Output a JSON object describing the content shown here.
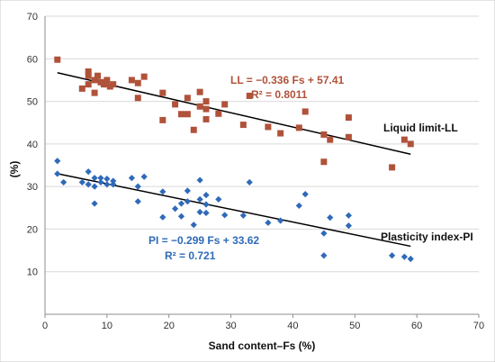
{
  "chart_data": {
    "type": "scatter",
    "xlabel": "Sand content–Fs (%)",
    "ylabel": "(%)",
    "xlim": [
      0,
      70
    ],
    "ylim": [
      0,
      70
    ],
    "x_ticks": [
      "0",
      "10",
      "20",
      "30",
      "40",
      "50",
      "60",
      "70"
    ],
    "y_ticks": [
      "10",
      "20",
      "30",
      "40",
      "50",
      "60",
      "70"
    ],
    "grid": "horizontal",
    "series": [
      {
        "name": "Liquid limit-LL",
        "color": "#b0523a",
        "marker": "square",
        "equation": "LL = −0.336 Fs + 57.41",
        "r2": "R² = 0.8011",
        "trend": {
          "slope": -0.336,
          "intercept": 57.41,
          "x_range": [
            2,
            59
          ]
        },
        "points": [
          [
            2,
            59.8
          ],
          [
            6,
            53
          ],
          [
            7,
            54
          ],
          [
            7,
            56
          ],
          [
            7,
            57
          ],
          [
            8,
            52
          ],
          [
            8,
            55
          ],
          [
            8.5,
            56
          ],
          [
            9,
            54.5
          ],
          [
            9.5,
            54
          ],
          [
            10,
            55
          ],
          [
            10.5,
            53.5
          ],
          [
            11,
            54
          ],
          [
            14,
            55
          ],
          [
            15,
            54.3
          ],
          [
            15,
            50.8
          ],
          [
            16,
            55.8
          ],
          [
            19,
            52
          ],
          [
            19,
            45.6
          ],
          [
            21,
            49.3
          ],
          [
            22,
            47
          ],
          [
            23,
            50.8
          ],
          [
            23,
            47
          ],
          [
            24,
            43.3
          ],
          [
            25,
            52.2
          ],
          [
            25,
            48.8
          ],
          [
            26,
            50
          ],
          [
            26,
            48.2
          ],
          [
            26,
            45.8
          ],
          [
            28,
            47.1
          ],
          [
            29,
            49.3
          ],
          [
            32,
            44.5
          ],
          [
            33,
            51.3
          ],
          [
            36,
            44
          ],
          [
            38,
            42.5
          ],
          [
            41,
            43.8
          ],
          [
            42,
            47.6
          ],
          [
            45,
            42.2
          ],
          [
            45,
            35.8
          ],
          [
            46,
            41
          ],
          [
            49,
            46.2
          ],
          [
            49,
            41.6
          ],
          [
            56,
            34.5
          ],
          [
            58,
            41
          ],
          [
            59,
            40
          ]
        ]
      },
      {
        "name": "Plasticity index-PI",
        "color": "#2f6ab8",
        "marker": "diamond",
        "equation": "PI = −0.299 Fs + 33.62",
        "r2": "R² = 0.721",
        "trend": {
          "slope": -0.299,
          "intercept": 33.62,
          "x_range": [
            2,
            59
          ]
        },
        "points": [
          [
            2,
            36
          ],
          [
            2,
            33
          ],
          [
            3,
            31
          ],
          [
            6,
            31
          ],
          [
            7,
            33.5
          ],
          [
            7,
            30.5
          ],
          [
            8,
            32
          ],
          [
            8,
            30
          ],
          [
            8,
            26
          ],
          [
            9,
            32
          ],
          [
            9,
            31
          ],
          [
            10,
            30.5
          ],
          [
            10,
            31.8
          ],
          [
            11,
            31.3
          ],
          [
            11,
            30.5
          ],
          [
            14,
            32
          ],
          [
            15,
            30
          ],
          [
            15,
            26.5
          ],
          [
            16,
            32.3
          ],
          [
            19,
            28.8
          ],
          [
            19,
            22.8
          ],
          [
            21,
            24.8
          ],
          [
            22,
            26
          ],
          [
            22,
            23
          ],
          [
            23,
            29
          ],
          [
            23,
            26.5
          ],
          [
            24,
            21
          ],
          [
            25,
            31.5
          ],
          [
            25,
            27
          ],
          [
            25,
            24
          ],
          [
            26,
            28
          ],
          [
            26,
            25.8
          ],
          [
            26,
            23.8
          ],
          [
            28,
            27
          ],
          [
            29,
            23.3
          ],
          [
            32,
            23.2
          ],
          [
            33,
            31
          ],
          [
            36,
            21.5
          ],
          [
            38,
            22
          ],
          [
            41,
            25.5
          ],
          [
            42,
            28.2
          ],
          [
            45,
            19
          ],
          [
            45,
            13.8
          ],
          [
            46,
            22.7
          ],
          [
            49,
            23.2
          ],
          [
            49,
            20.8
          ],
          [
            56,
            13.8
          ],
          [
            58,
            13.5
          ],
          [
            59,
            13
          ]
        ]
      }
    ]
  }
}
